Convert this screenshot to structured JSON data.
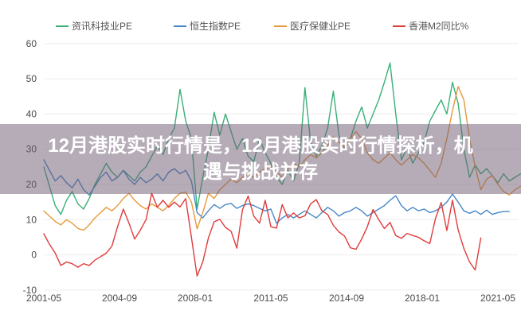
{
  "banner": {
    "full_title": "12月港股实时行情是，12月港股实时行情探析，机遇与挑战并存",
    "line1": "12月港股实时行情是，12月港股实时行情探析，机",
    "line2": "遇与挑战并存",
    "bg_color": "rgba(109,89,113,0.5)",
    "text_color": "#ffffff"
  },
  "colors": {
    "background": "#ffffff",
    "grid": "#ededed",
    "axis_label": "#4a4a4a",
    "legend_text": "#555555"
  },
  "chart_data": {
    "type": "line",
    "title": "",
    "xlabel": "",
    "ylabel": "",
    "ylim": [
      -10,
      60
    ],
    "y_ticks": [
      60,
      50,
      40,
      30,
      20,
      10,
      0,
      -10
    ],
    "grid": true,
    "legend_position": "top",
    "x_tick_labels": [
      "2001-05",
      "2004-09",
      "2008-01",
      "2011-05",
      "2014-09",
      "2018-01",
      "2021-05"
    ],
    "x_tick_month_offsets": [
      0,
      40,
      80,
      120,
      160,
      200,
      240
    ],
    "x_dates": [
      "2001-05",
      "2001-08",
      "2001-11",
      "2002-02",
      "2002-05",
      "2002-08",
      "2002-11",
      "2003-02",
      "2003-05",
      "2003-08",
      "2003-11",
      "2004-02",
      "2004-05",
      "2004-08",
      "2004-11",
      "2005-02",
      "2005-05",
      "2005-08",
      "2005-11",
      "2006-02",
      "2006-05",
      "2006-08",
      "2006-11",
      "2007-02",
      "2007-05",
      "2007-08",
      "2007-11",
      "2008-02",
      "2008-05",
      "2008-08",
      "2008-11",
      "2009-02",
      "2009-05",
      "2009-08",
      "2009-11",
      "2010-02",
      "2010-05",
      "2010-08",
      "2010-11",
      "2011-02",
      "2011-05",
      "2011-08",
      "2011-11",
      "2012-02",
      "2012-05",
      "2012-08",
      "2012-11",
      "2013-02",
      "2013-05",
      "2013-08",
      "2013-11",
      "2014-02",
      "2014-05",
      "2014-08",
      "2014-11",
      "2015-02",
      "2015-05",
      "2015-08",
      "2015-11",
      "2016-02",
      "2016-05",
      "2016-08",
      "2016-11",
      "2017-02",
      "2017-05",
      "2017-08",
      "2017-11",
      "2018-02",
      "2018-05",
      "2018-08",
      "2018-11",
      "2019-02",
      "2019-05",
      "2019-08",
      "2019-11",
      "2020-02",
      "2020-05",
      "2020-08",
      "2020-11",
      "2021-02",
      "2021-05",
      "2021-08",
      "2021-11",
      "2022-02",
      "2022-05"
    ],
    "series": [
      {
        "name": "资讯科技业PE",
        "color": "#39b077",
        "values": [
          25.0,
          19.5,
          14.0,
          11.5,
          15.5,
          18.0,
          14.5,
          13.0,
          16.0,
          20.0,
          23.0,
          26.0,
          23.5,
          22.0,
          24.0,
          22.5,
          21.0,
          23.5,
          25.0,
          28.0,
          31.0,
          28.5,
          33.0,
          36.0,
          47.0,
          38.0,
          33.0,
          13.0,
          22.0,
          30.0,
          40.5,
          34.0,
          40.0,
          35.0,
          30.0,
          33.0,
          28.0,
          26.5,
          33.0,
          29.0,
          26.0,
          22.0,
          20.0,
          24.0,
          21.0,
          26.0,
          47.5,
          32.0,
          28.0,
          31.0,
          36.0,
          46.5,
          34.0,
          30.0,
          33.0,
          38.0,
          42.0,
          36.0,
          40.0,
          44.0,
          49.0,
          54.5,
          40.0,
          27.0,
          30.5,
          26.0,
          29.0,
          32.0,
          38.0,
          41.0,
          44.0,
          40.0,
          49.0,
          43.0,
          30.0,
          22.0,
          25.5,
          23.0,
          24.5,
          22.5,
          20.5,
          23.0,
          21.0,
          22.0,
          23.0
        ]
      },
      {
        "name": "恒生指数PE",
        "color": "#4788c7",
        "values": [
          27.0,
          24.0,
          21.0,
          22.5,
          20.5,
          19.0,
          21.5,
          18.5,
          17.0,
          19.5,
          22.0,
          23.5,
          21.0,
          22.0,
          24.0,
          21.5,
          20.0,
          22.0,
          20.5,
          21.5,
          23.0,
          21.0,
          23.5,
          24.5,
          23.0,
          24.0,
          21.0,
          12.0,
          10.5,
          12.5,
          14.3,
          13.2,
          14.3,
          14.6,
          13.2,
          14.0,
          14.5,
          14.0,
          13.2,
          12.5,
          13.0,
          9.0,
          10.5,
          11.5,
          10.5,
          11.5,
          12.5,
          11.5,
          10.5,
          12.0,
          13.5,
          12.5,
          11.0,
          12.0,
          12.5,
          13.5,
          12.5,
          11.0,
          12.0,
          13.0,
          14.0,
          15.5,
          16.8,
          14.0,
          12.5,
          13.5,
          12.5,
          13.0,
          12.0,
          12.5,
          13.5,
          15.0,
          17.3,
          15.0,
          12.5,
          11.8,
          12.5,
          11.5,
          12.7,
          11.5,
          12.0,
          12.3,
          12.3,
          null,
          null
        ]
      },
      {
        "name": "医疗保健业PE",
        "color": "#e79a3c",
        "values": [
          12.5,
          11.0,
          9.5,
          8.5,
          10.0,
          9.0,
          7.5,
          7.0,
          8.5,
          10.5,
          12.0,
          13.5,
          12.5,
          14.0,
          16.0,
          17.5,
          15.5,
          14.0,
          13.0,
          14.5,
          13.5,
          12.5,
          14.0,
          16.0,
          17.5,
          17.8,
          15.0,
          7.4,
          12.0,
          17.5,
          16.0,
          18.5,
          20.0,
          21.5,
          20.5,
          22.0,
          23.0,
          22.0,
          23.5,
          24.5,
          25.0,
          23.5,
          22.0,
          24.5,
          26.0,
          25.0,
          27.0,
          28.5,
          27.5,
          29.0,
          31.0,
          33.5,
          32.0,
          30.5,
          33.0,
          35.0,
          33.0,
          29.0,
          27.0,
          26.0,
          27.5,
          29.0,
          27.0,
          25.5,
          27.0,
          28.5,
          27.5,
          26.0,
          24.0,
          22.0,
          26.0,
          33.0,
          41.0,
          47.8,
          44.0,
          33.0,
          25.0,
          18.5,
          21.5,
          22.5,
          20.0,
          18.0,
          17.0,
          18.5,
          19.5
        ]
      },
      {
        "name": "香港M2同比%",
        "color": "#e03b3b",
        "values": [
          6.0,
          3.0,
          0.5,
          -3.0,
          -2.0,
          -2.5,
          -3.5,
          -2.5,
          -3.0,
          -1.5,
          -0.5,
          0.5,
          2.5,
          8.0,
          13.0,
          9.0,
          4.5,
          7.0,
          10.0,
          17.5,
          13.5,
          15.5,
          13.5,
          15.0,
          13.6,
          16.0,
          5.0,
          -6.0,
          -2.0,
          4.8,
          9.4,
          10.1,
          7.8,
          6.7,
          1.9,
          12.8,
          16.7,
          11.0,
          9.0,
          15.5,
          8.0,
          7.6,
          14.3,
          10.5,
          11.9,
          10.5,
          11.1,
          14.5,
          15.7,
          12.5,
          11.5,
          8.4,
          6.5,
          5.3,
          2.0,
          1.6,
          4.5,
          8.0,
          12.9,
          10.0,
          7.5,
          9.2,
          5.5,
          4.7,
          6.1,
          5.5,
          5.0,
          4.0,
          3.2,
          10.3,
          14.9,
          6.9,
          15.5,
          7.1,
          1.8,
          -2.0,
          -4.3,
          4.8,
          null,
          null,
          null,
          null,
          null,
          null,
          null
        ]
      }
    ]
  }
}
